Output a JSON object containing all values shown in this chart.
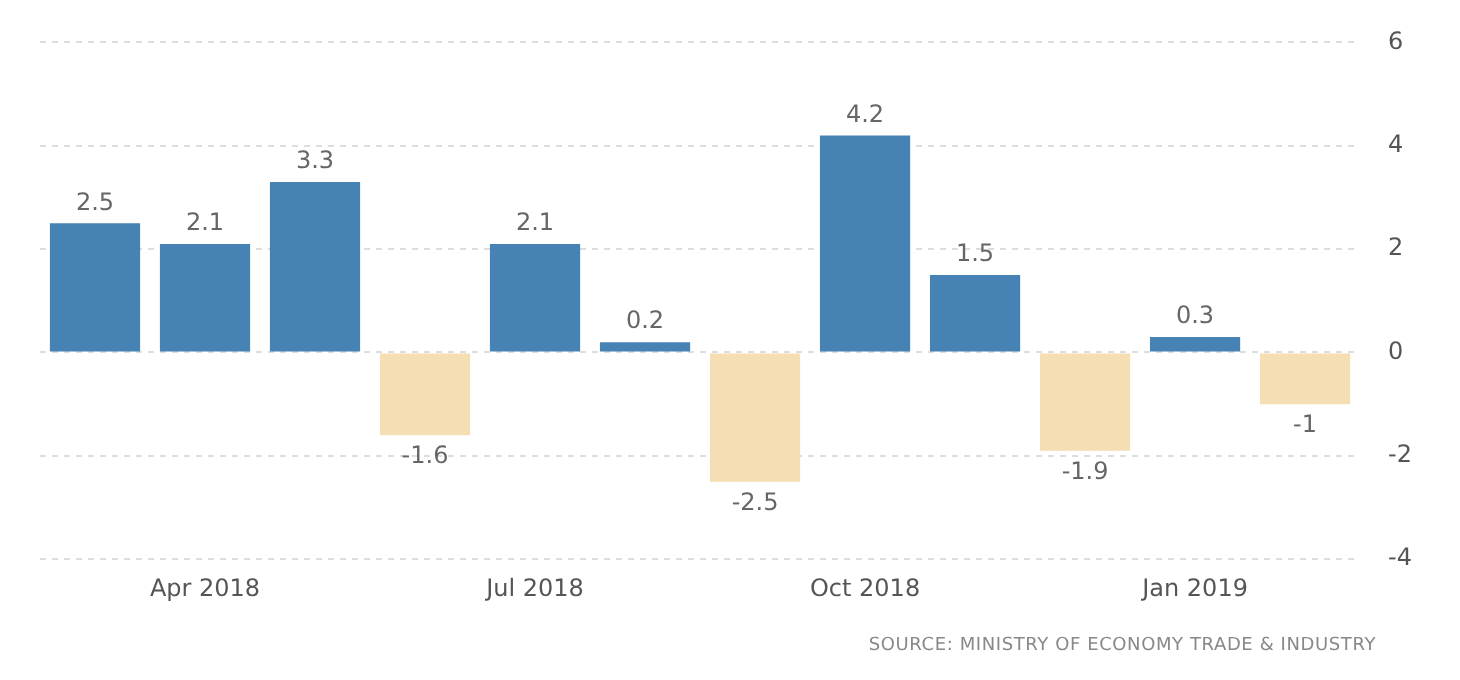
{
  "chart_data": {
    "type": "bar",
    "categories": [
      null,
      "Apr 2018",
      null,
      null,
      "Jul 2018",
      null,
      null,
      "Oct 2018",
      null,
      null,
      "Jan 2019",
      null
    ],
    "values": [
      2.5,
      2.1,
      3.3,
      -1.6,
      2.1,
      0.2,
      -2.5,
      4.2,
      1.5,
      -1.9,
      0.3,
      -1
    ],
    "colors": [
      "#4682b4",
      "#4682b4",
      "#4682b4",
      "#f5deb3",
      "#4682b4",
      "#4682b4",
      "#f5deb3",
      "#4682b4",
      "#4682b4",
      "#f5deb3",
      "#4682b4",
      "#f5deb3"
    ],
    "ylim": [
      -4,
      6
    ],
    "yticks": [
      -4,
      -2,
      0,
      2,
      4,
      6
    ],
    "grid": "y",
    "legend": false,
    "data_labels": true,
    "annotations": [
      "SOURCE: MINISTRY OF ECONOMY TRADE & INDUSTRY"
    ]
  }
}
